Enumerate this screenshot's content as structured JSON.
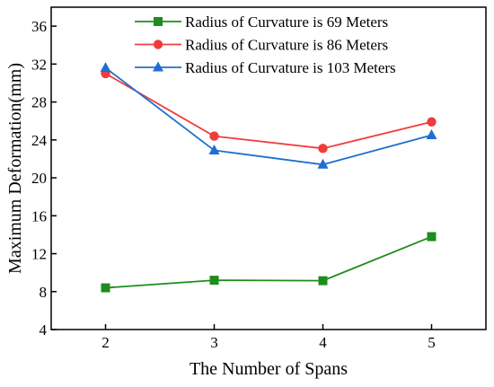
{
  "chart_data": {
    "type": "line",
    "title": "",
    "xlabel": "The Number of Spans",
    "ylabel": "Maximum Deformation(mm)",
    "x": [
      2,
      3,
      4,
      5
    ],
    "xlim": [
      1.5,
      5.5
    ],
    "ylim": [
      4,
      38
    ],
    "xticks": [
      2,
      3,
      4,
      5
    ],
    "yticks": [
      4,
      8,
      12,
      16,
      20,
      24,
      28,
      32,
      36
    ],
    "grid": false,
    "legend_position": "top-right",
    "series": [
      {
        "name": "Radius of Curvature is 69 Meters",
        "values": [
          8.4,
          9.2,
          9.15,
          13.8
        ],
        "color": "#1e8c1e",
        "marker": "square"
      },
      {
        "name": "Radius of Curvature is 86 Meters",
        "values": [
          31.0,
          24.4,
          23.1,
          25.9
        ],
        "color": "#f03c3c",
        "marker": "circle"
      },
      {
        "name": "Radius of Curvature is 103 Meters",
        "values": [
          31.6,
          22.9,
          21.4,
          24.5
        ],
        "color": "#1f6fd0",
        "marker": "triangle"
      }
    ]
  }
}
